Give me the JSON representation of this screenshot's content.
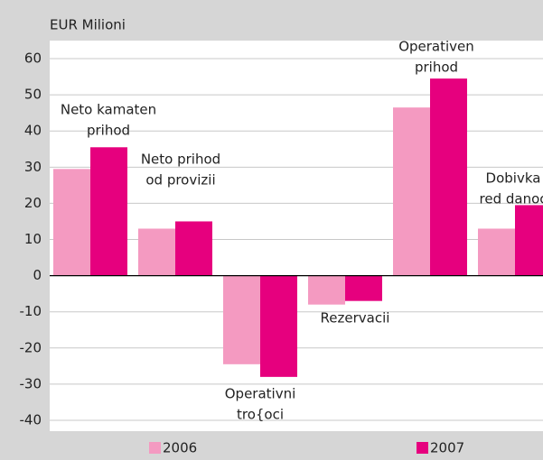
{
  "chart_data": {
    "type": "bar",
    "y_label": "EUR Milioni",
    "categories": [
      [
        "Neto kamaten",
        "prihod"
      ],
      [
        "Neto prihod",
        "od provizii"
      ],
      [
        "Operativni",
        "tro{oci"
      ],
      [
        "Rezervacii"
      ],
      [
        "Operativen",
        "prihod"
      ],
      [
        "Dobivka",
        "red danoc"
      ]
    ],
    "series": [
      {
        "name": "2006",
        "color": "#f49ac1",
        "values": [
          29.5,
          13,
          -24.5,
          -8,
          46.5,
          13
        ]
      },
      {
        "name": "2007",
        "color": "#e6007e",
        "values": [
          35.5,
          15,
          -28,
          -7,
          54.5,
          19.5
        ]
      }
    ],
    "ylim": [
      -43,
      65
    ],
    "yticks": [
      -40,
      -30,
      -20,
      -10,
      0,
      10,
      20,
      30,
      40,
      50,
      60
    ],
    "grid": true
  }
}
